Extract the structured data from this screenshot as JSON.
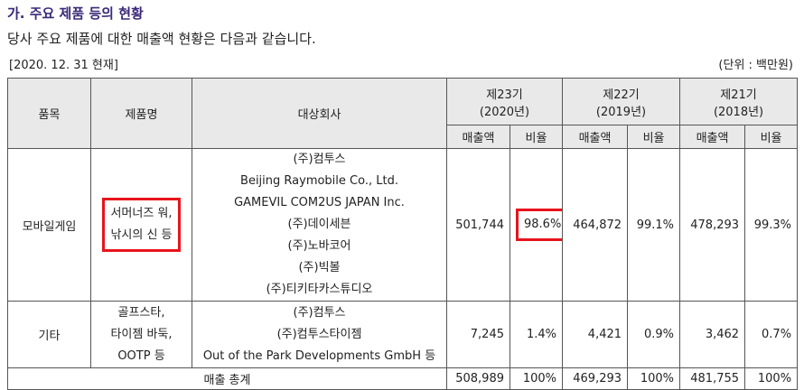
{
  "heading": "가. 주요 제품 등의 현황",
  "intro": "당사 주요 제품에 대한 매출액 현황은 다음과 같습니다.",
  "date_label": "[2020. 12. 31 현재]",
  "unit_label": "(단위 : 백만원)",
  "table": {
    "col_item": "품목",
    "col_product": "제품명",
    "col_company": "대상회사",
    "periods": [
      {
        "name": "제23기",
        "year": "(2020년)"
      },
      {
        "name": "제22기",
        "year": "(2019년)"
      },
      {
        "name": "제21기",
        "year": "(2018년)"
      }
    ],
    "sub_sales": "매출액",
    "sub_ratio": "비율",
    "rows": [
      {
        "item": "모바일게임",
        "product_lines": [
          "서머너즈 워,",
          "낚시의 신 등"
        ],
        "companies": [
          "(주)컴투스",
          "Beijing Raymobile Co., Ltd.",
          "GAMEVIL COM2US JAPAN Inc.",
          "(주)데이세븐",
          "(주)노바코어",
          "(주)빅볼",
          "(주)티키타카스튜디오"
        ],
        "values": [
          "501,744",
          "98.6%",
          "464,872",
          "99.1%",
          "478,293",
          "99.3%"
        ]
      },
      {
        "item": "기타",
        "product_lines": [
          "골프스타,",
          "타이젬 바둑,",
          "OOTP 등"
        ],
        "companies": [
          "(주)컴투스",
          "(주)컴투스타이젬",
          "Out of the Park Developments GmbH 등"
        ],
        "values": [
          "7,245",
          "1.4%",
          "4,421",
          "0.9%",
          "3,462",
          "0.7%"
        ]
      }
    ],
    "total": {
      "label": "매출 총계",
      "values": [
        "508,989",
        "100%",
        "469,293",
        "100%",
        "481,755",
        "100%"
      ]
    }
  },
  "highlight_color": "#e8141c"
}
